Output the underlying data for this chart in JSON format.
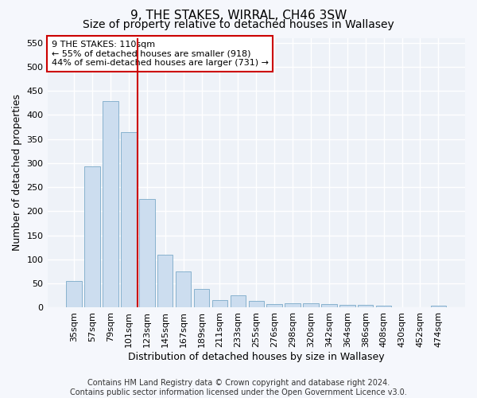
{
  "title": "9, THE STAKES, WIRRAL, CH46 3SW",
  "subtitle": "Size of property relative to detached houses in Wallasey",
  "xlabel": "Distribution of detached houses by size in Wallasey",
  "ylabel": "Number of detached properties",
  "categories": [
    "35sqm",
    "57sqm",
    "79sqm",
    "101sqm",
    "123sqm",
    "145sqm",
    "167sqm",
    "189sqm",
    "211sqm",
    "233sqm",
    "255sqm",
    "276sqm",
    "298sqm",
    "320sqm",
    "342sqm",
    "364sqm",
    "386sqm",
    "408sqm",
    "430sqm",
    "452sqm",
    "474sqm"
  ],
  "values": [
    55,
    293,
    428,
    365,
    225,
    110,
    75,
    38,
    15,
    26,
    14,
    8,
    9,
    9,
    7,
    5,
    5,
    4,
    0,
    0,
    4
  ],
  "bar_color": "#ccddef",
  "bar_edge_color": "#7aaac8",
  "property_line_x": 3.5,
  "annotation_text": "9 THE STAKES: 110sqm\n← 55% of detached houses are smaller (918)\n44% of semi-detached houses are larger (731) →",
  "annotation_box_color": "#ffffff",
  "annotation_box_edge": "#cc0000",
  "vline_color": "#cc0000",
  "footer": "Contains HM Land Registry data © Crown copyright and database right 2024.\nContains public sector information licensed under the Open Government Licence v3.0.",
  "ylim": [
    0,
    560
  ],
  "yticks": [
    0,
    50,
    100,
    150,
    200,
    250,
    300,
    350,
    400,
    450,
    500,
    550
  ],
  "bg_color": "#eef2f8",
  "grid_color": "#ffffff",
  "title_fontsize": 11,
  "subtitle_fontsize": 10,
  "axis_label_fontsize": 9,
  "tick_fontsize": 8,
  "annotation_fontsize": 8,
  "footer_fontsize": 7
}
